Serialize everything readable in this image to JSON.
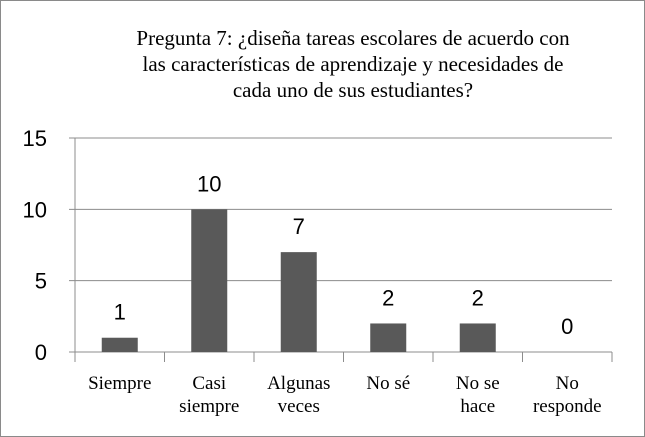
{
  "chart_data": {
    "type": "bar",
    "title_lines": [
      "Pregunta 7: ¿diseña tareas escolares de acuerdo con",
      "las características de aprendizaje y necesidades de",
      "cada uno de sus estudiantes?"
    ],
    "categories": [
      [
        "Siempre"
      ],
      [
        "Casi",
        "siempre"
      ],
      [
        "Algunas",
        "veces"
      ],
      [
        "No sé"
      ],
      [
        "No se",
        "hace"
      ],
      [
        "No",
        "responde"
      ]
    ],
    "values": [
      1,
      10,
      7,
      2,
      2,
      0
    ],
    "y_ticks": [
      "0",
      "5",
      "10",
      "15"
    ],
    "ylim": [
      0,
      15
    ],
    "grid": true,
    "bar_color": "#595959",
    "grid_color": "#8c8c8c"
  }
}
